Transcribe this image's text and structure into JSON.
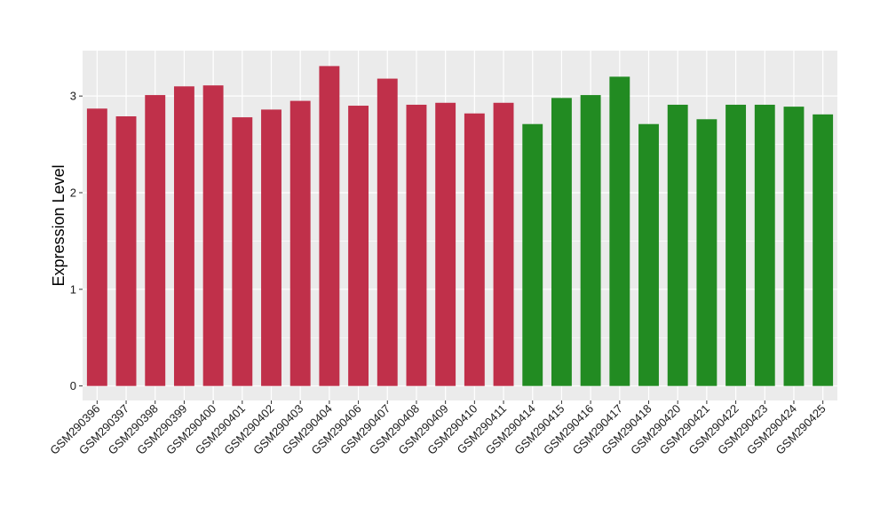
{
  "chart_data": {
    "type": "bar",
    "title": "",
    "xlabel": "",
    "ylabel": "Expression Level",
    "ylim": [
      -0.15,
      3.47
    ],
    "yticks": [
      0,
      1,
      2,
      3
    ],
    "grid": true,
    "legend": "none",
    "categories": [
      "GSM290396",
      "GSM290397",
      "GSM290398",
      "GSM290399",
      "GSM290400",
      "GSM290401",
      "GSM290402",
      "GSM290403",
      "GSM290404",
      "GSM290406",
      "GSM290407",
      "GSM290408",
      "GSM290409",
      "GSM290410",
      "GSM290411",
      "GSM290414",
      "GSM290415",
      "GSM290416",
      "GSM290417",
      "GSM290418",
      "GSM290420",
      "GSM290421",
      "GSM290422",
      "GSM290423",
      "GSM290424",
      "GSM290425"
    ],
    "values": [
      2.87,
      2.79,
      3.01,
      3.1,
      3.11,
      2.78,
      2.86,
      2.95,
      3.31,
      2.9,
      3.18,
      2.91,
      2.93,
      2.82,
      2.93,
      2.71,
      2.98,
      3.01,
      3.2,
      2.71,
      2.91,
      2.76,
      2.91,
      2.91,
      2.89,
      2.81
    ],
    "groups": [
      0,
      0,
      0,
      0,
      0,
      0,
      0,
      0,
      0,
      0,
      0,
      0,
      0,
      0,
      0,
      1,
      1,
      1,
      1,
      1,
      1,
      1,
      1,
      1,
      1,
      1
    ],
    "colors": [
      "#c0304a",
      "#228b22"
    ],
    "panel_background": "#ebebeb",
    "gridline_color": "#ffffff"
  }
}
